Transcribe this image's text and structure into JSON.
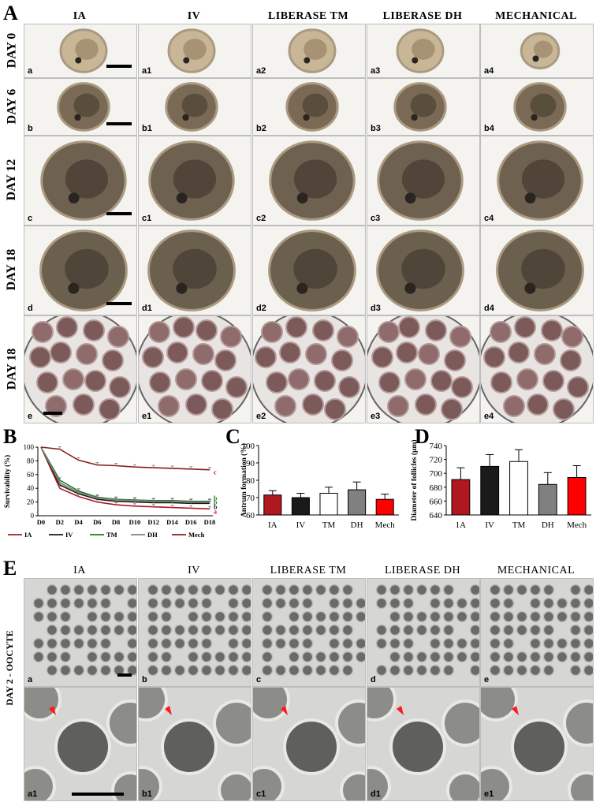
{
  "panels": {
    "A": "A",
    "B": "B",
    "C": "C",
    "D": "D",
    "E": "E"
  },
  "panelA": {
    "columns": [
      "IA",
      "IV",
      "LIBERASE TM",
      "LIBERASE DH",
      "MECHANICAL"
    ],
    "rows": [
      {
        "label": "DAY 0",
        "cells": [
          "a",
          "a1",
          "a2",
          "a3",
          "a4"
        ]
      },
      {
        "label": "DAY 6",
        "cells": [
          "b",
          "b1",
          "b2",
          "b3",
          "b4"
        ]
      },
      {
        "label": "DAY 12",
        "cells": [
          "c",
          "c1",
          "c2",
          "c3",
          "c4"
        ]
      },
      {
        "label": "DAY 18",
        "cells": [
          "d",
          "d1",
          "d2",
          "d3",
          "d4"
        ]
      },
      {
        "label": "DAY 18",
        "cells": [
          "e",
          "e1",
          "e2",
          "e3",
          "e4"
        ]
      }
    ]
  },
  "panelE": {
    "columns": [
      "IA",
      "IV",
      "LIBERASE TM",
      "LIBERASE DH",
      "MECHANICAL"
    ],
    "side_label": "DAY 2 - OOCYTE",
    "top_cells": [
      "a",
      "b",
      "c",
      "d",
      "e"
    ],
    "bottom_cells": [
      "a1",
      "b1",
      "c1",
      "d1",
      "e1"
    ]
  },
  "colors": {
    "ia": "#b0171f",
    "iv": "#1a1a1a",
    "tm": "#ffffff",
    "dh": "#808080",
    "mech": "#ff0000",
    "tm_line": "#1e7b1e",
    "mech_line": "#8b1a1a"
  },
  "chart_data": [
    {
      "type": "line",
      "ylabel": "Survivability (%)",
      "x": [
        "D0",
        "D2",
        "D4",
        "D6",
        "D8",
        "D10",
        "D12",
        "D14",
        "D16",
        "D18"
      ],
      "ylim": [
        0,
        100
      ],
      "yticks": [
        0,
        20,
        40,
        60,
        80,
        100
      ],
      "legend": [
        "IA",
        "IV",
        "TM",
        "DH",
        "Mech"
      ],
      "series": [
        {
          "name": "IA",
          "values": [
            100,
            40,
            28,
            20,
            16,
            14,
            13,
            12,
            11,
            10
          ],
          "end_label": "a"
        },
        {
          "name": "IV",
          "values": [
            100,
            45,
            32,
            24,
            21,
            20,
            19,
            19,
            18,
            18
          ],
          "end_label": "b"
        },
        {
          "name": "TM",
          "values": [
            100,
            52,
            36,
            27,
            24,
            23,
            22,
            22,
            21,
            21
          ],
          "end_label": "b"
        },
        {
          "name": "DH",
          "values": [
            100,
            48,
            34,
            26,
            23,
            22,
            21,
            21,
            20,
            20
          ],
          "end_label": "b"
        },
        {
          "name": "Mech",
          "values": [
            100,
            97,
            81,
            74,
            73,
            71,
            70,
            69,
            68,
            67
          ],
          "end_label": "c"
        }
      ]
    },
    {
      "type": "bar",
      "ylabel": "Antrum formation (%)",
      "categories": [
        "IA",
        "IV",
        "TM",
        "DH",
        "Mech"
      ],
      "values": [
        71.5,
        70,
        72.5,
        74.5,
        69
      ],
      "errors": [
        2.5,
        2.5,
        3.5,
        4.5,
        3
      ],
      "ylim": [
        60,
        100
      ],
      "yticks": [
        60,
        70,
        80,
        90,
        100
      ]
    },
    {
      "type": "bar",
      "ylabel": "Diameter of follicles (µm)",
      "categories": [
        "1A",
        "IV",
        "TM",
        "DH",
        "Mech"
      ],
      "values": [
        691,
        710,
        717,
        684,
        694
      ],
      "errors": [
        17,
        17,
        17,
        17,
        17
      ],
      "ylim": [
        640,
        740
      ],
      "yticks": [
        640,
        660,
        680,
        700,
        720,
        740
      ]
    }
  ]
}
